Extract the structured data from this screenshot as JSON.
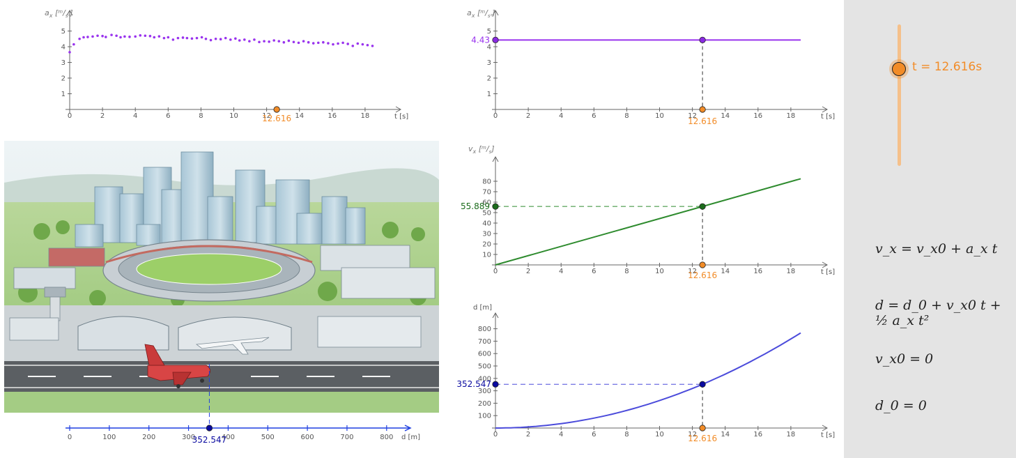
{
  "slider": {
    "label": "t = 12.616s",
    "t": 12.616
  },
  "formulas": {
    "velocity": "v_x = v_x0 + a_x t",
    "distance": "d = d_0 + v_x0 t + ½ a_x t²",
    "v0": "v_x0 = 0",
    "d0": "d_0 = 0"
  },
  "colors": {
    "accent": "#f28c28",
    "acceleration": "#9933ee",
    "velocity": "#2e8b2e",
    "distance": "#4b4bdb",
    "distance_point": "#0a0aa0",
    "track": "#1f3fe0"
  },
  "chart_data": [
    {
      "id": "accel-measured",
      "type": "scatter",
      "ylabel": "a_x [m/s²]",
      "xlabel": "t [s]",
      "xlim": [
        0,
        19
      ],
      "ylim": [
        0,
        6
      ],
      "x_ticks": [
        0,
        2,
        4,
        6,
        8,
        10,
        12,
        14,
        16,
        18
      ],
      "y_ticks": [
        1,
        2,
        3,
        4,
        5
      ],
      "marker_label": "12.616",
      "points": [
        [
          0.0,
          3.65
        ],
        [
          0.25,
          4.15
        ],
        [
          0.6,
          4.5
        ],
        [
          0.85,
          4.6
        ],
        [
          1.1,
          4.62
        ],
        [
          1.4,
          4.65
        ],
        [
          1.7,
          4.7
        ],
        [
          2.0,
          4.68
        ],
        [
          2.2,
          4.62
        ],
        [
          2.55,
          4.75
        ],
        [
          2.85,
          4.7
        ],
        [
          3.1,
          4.6
        ],
        [
          3.35,
          4.65
        ],
        [
          3.65,
          4.63
        ],
        [
          4.0,
          4.65
        ],
        [
          4.3,
          4.72
        ],
        [
          4.6,
          4.7
        ],
        [
          4.9,
          4.68
        ],
        [
          5.15,
          4.6
        ],
        [
          5.45,
          4.66
        ],
        [
          5.75,
          4.55
        ],
        [
          6.0,
          4.6
        ],
        [
          6.3,
          4.45
        ],
        [
          6.6,
          4.55
        ],
        [
          6.9,
          4.58
        ],
        [
          7.15,
          4.55
        ],
        [
          7.45,
          4.52
        ],
        [
          7.75,
          4.55
        ],
        [
          8.05,
          4.6
        ],
        [
          8.3,
          4.5
        ],
        [
          8.6,
          4.42
        ],
        [
          8.9,
          4.5
        ],
        [
          9.2,
          4.48
        ],
        [
          9.5,
          4.55
        ],
        [
          9.8,
          4.45
        ],
        [
          10.1,
          4.52
        ],
        [
          10.35,
          4.4
        ],
        [
          10.65,
          4.45
        ],
        [
          10.95,
          4.35
        ],
        [
          11.25,
          4.45
        ],
        [
          11.55,
          4.3
        ],
        [
          11.85,
          4.35
        ],
        [
          12.15,
          4.32
        ],
        [
          12.45,
          4.4
        ],
        [
          12.75,
          4.35
        ],
        [
          13.05,
          4.28
        ],
        [
          13.35,
          4.38
        ],
        [
          13.65,
          4.3
        ],
        [
          13.95,
          4.25
        ],
        [
          14.25,
          4.35
        ],
        [
          14.55,
          4.28
        ],
        [
          14.85,
          4.22
        ],
        [
          15.15,
          4.25
        ],
        [
          15.45,
          4.28
        ],
        [
          15.75,
          4.22
        ],
        [
          16.05,
          4.15
        ],
        [
          16.35,
          4.2
        ],
        [
          16.65,
          4.25
        ],
        [
          16.95,
          4.18
        ],
        [
          17.25,
          4.05
        ],
        [
          17.55,
          4.2
        ],
        [
          17.85,
          4.15
        ],
        [
          18.15,
          4.1
        ],
        [
          18.45,
          4.05
        ]
      ]
    },
    {
      "id": "accel-model",
      "type": "line",
      "ylabel": "a_x [m/s²]",
      "xlabel": "t [s]",
      "xlim": [
        0,
        19
      ],
      "ylim": [
        0,
        6
      ],
      "x_ticks": [
        0,
        2,
        4,
        6,
        8,
        10,
        12,
        14,
        16,
        18
      ],
      "y_ticks": [
        1,
        2,
        3,
        4,
        5
      ],
      "a": 4.43,
      "t_end": 18.6,
      "value_label": "4.43",
      "marker_label": "12.616"
    },
    {
      "id": "velocity",
      "type": "line",
      "ylabel": "v_x [m/s]",
      "xlabel": "t [s]",
      "xlim": [
        0,
        19
      ],
      "ylim": [
        0,
        90
      ],
      "x_ticks": [
        0,
        2,
        4,
        6,
        8,
        10,
        12,
        14,
        16,
        18
      ],
      "y_ticks": [
        10,
        20,
        30,
        40,
        50,
        60,
        70,
        80
      ],
      "slope": 4.43,
      "t_end": 18.6,
      "value_label": "55.889",
      "marker_label": "12.616"
    },
    {
      "id": "distance",
      "type": "line",
      "ylabel": "d [m]",
      "xlabel": "t [s]",
      "xlim": [
        0,
        19
      ],
      "ylim": [
        0,
        900
      ],
      "x_ticks": [
        0,
        2,
        4,
        6,
        8,
        10,
        12,
        14,
        16,
        18
      ],
      "y_ticks": [
        100,
        200,
        300,
        400,
        500,
        600,
        700,
        800
      ],
      "half_a": 2.215,
      "t_end": 18.6,
      "value_label": "352.547",
      "marker_label": "12.616"
    },
    {
      "id": "track",
      "type": "number-line",
      "xlabel": "d [m]",
      "xlim": [
        0,
        870
      ],
      "x_ticks": [
        0,
        100,
        200,
        300,
        400,
        500,
        600,
        700,
        800
      ],
      "position": 352.547,
      "value_label": "352.547"
    }
  ]
}
